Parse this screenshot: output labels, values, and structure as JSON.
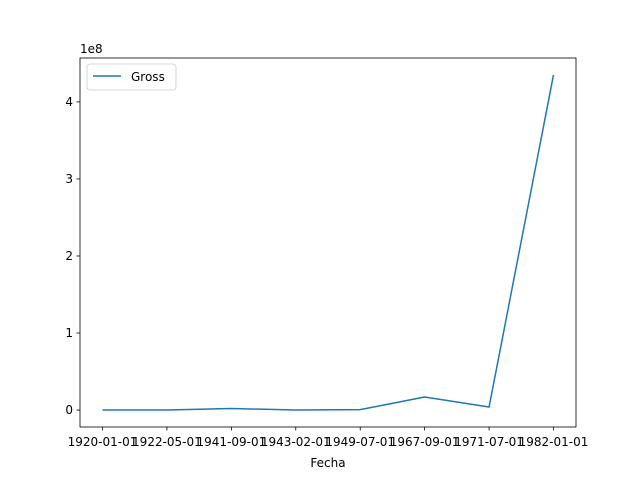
{
  "chart_data": {
    "type": "line",
    "title": "",
    "xlabel": "Fecha",
    "ylabel": "",
    "y_offset_label": "1e8",
    "categories": [
      "1920-01-01",
      "1922-05-01",
      "1941-09-01",
      "1943-02-01",
      "1949-07-01",
      "1967-09-01",
      "1971-07-01",
      "1982-01-01"
    ],
    "series": [
      {
        "name": "Gross",
        "color": "#1f77b4",
        "values": [
          0,
          0,
          2000000,
          0,
          500000,
          17000000,
          4000000,
          435000000
        ]
      }
    ],
    "ylim": [
      -22000000,
      457000000
    ],
    "yticks": [
      0,
      100000000,
      200000000,
      300000000,
      400000000
    ],
    "ytick_labels": [
      "0",
      "1",
      "2",
      "3",
      "4"
    ],
    "grid": false,
    "legend_position": "upper-left"
  }
}
